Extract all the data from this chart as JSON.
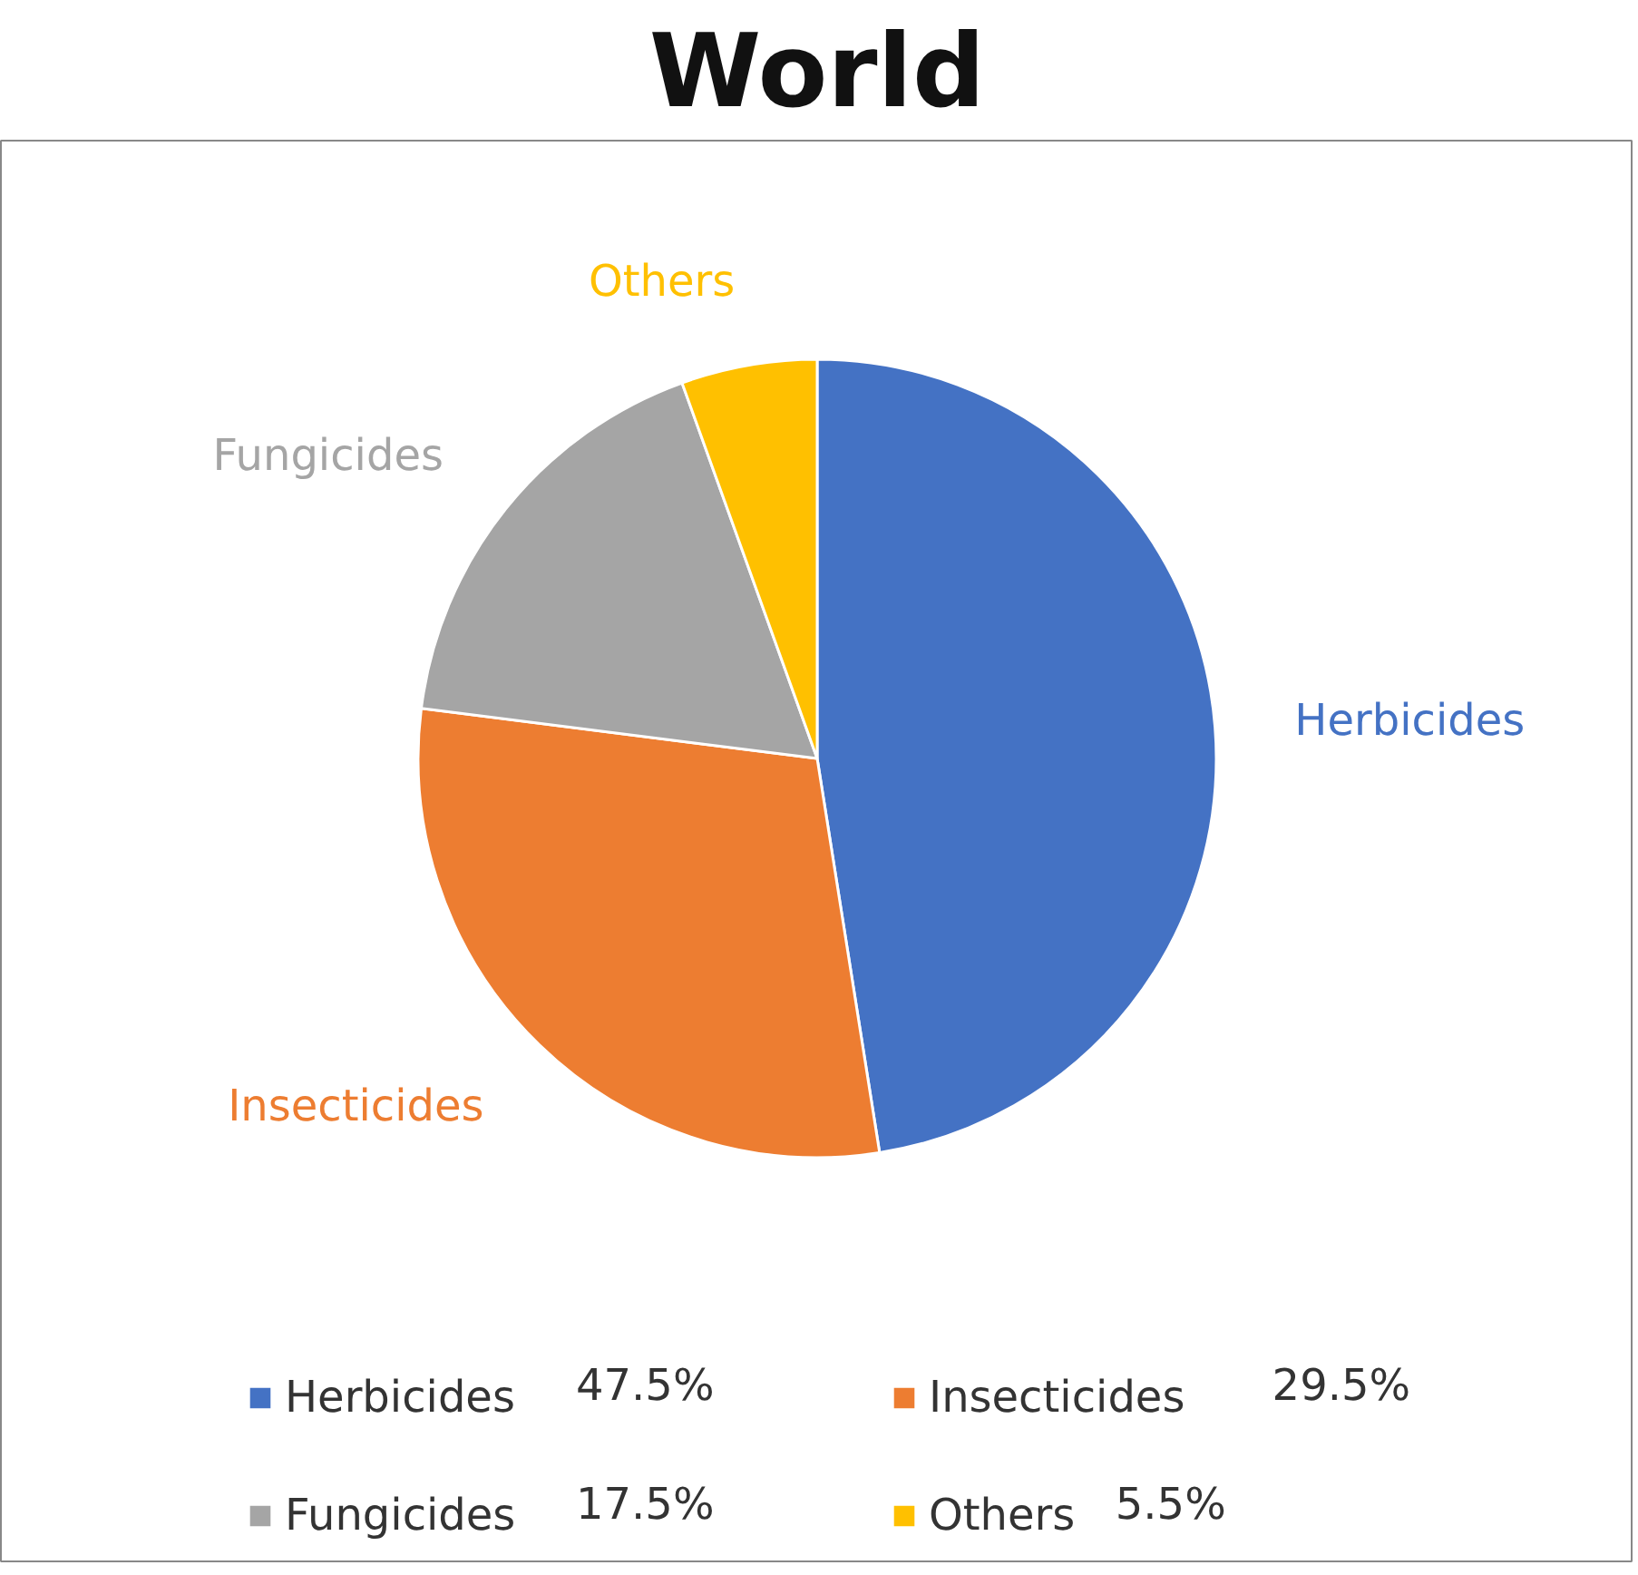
{
  "chart_data": {
    "type": "pie",
    "title": "World",
    "categories": [
      "Herbicides",
      "Insecticides",
      "Fungicides",
      "Others"
    ],
    "values": [
      47.5,
      29.5,
      17.5,
      5.5
    ],
    "colors": [
      "#4472c4",
      "#ed7d31",
      "#a5a5a5",
      "#ffc000"
    ],
    "value_labels": [
      "47.5%",
      "29.5%",
      "17.5%",
      "5.5%"
    ],
    "legend": "bottom"
  }
}
